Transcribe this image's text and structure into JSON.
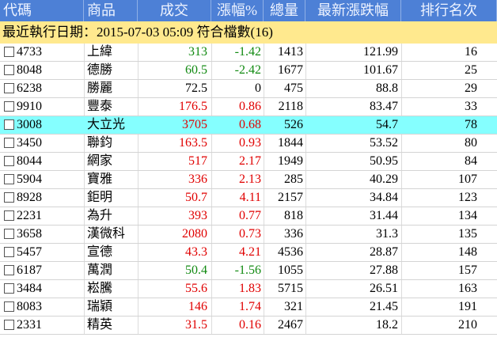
{
  "header": {
    "columns": [
      "代碼",
      "商品",
      "成交",
      "漲幅%",
      "總量",
      "最新漲跌幅",
      "排行名次"
    ]
  },
  "info": "最近執行日期：2015-07-03 05:09 符合檔數(16)",
  "selected_row": 4,
  "table": {
    "rows": [
      [
        "4733",
        "上緯",
        313,
        -1.42,
        1413,
        121.99,
        16
      ],
      [
        "8048",
        "德勝",
        60.5,
        -2.42,
        1677,
        101.67,
        25
      ],
      [
        "6238",
        "勝麗",
        72.5,
        0,
        475,
        88.8,
        29
      ],
      [
        "9910",
        "豐泰",
        176.5,
        0.86,
        2118,
        83.47,
        33
      ],
      [
        "3008",
        "大立光",
        3705,
        0.68,
        526,
        54.7,
        78
      ],
      [
        "3450",
        "聯鈞",
        163.5,
        0.93,
        1844,
        53.52,
        80
      ],
      [
        "8044",
        "網家",
        517,
        2.17,
        1949,
        50.95,
        84
      ],
      [
        "5904",
        "寶雅",
        336,
        2.13,
        285,
        40.29,
        107
      ],
      [
        "8928",
        "鉅明",
        50.7,
        4.11,
        2157,
        34.84,
        123
      ],
      [
        "2231",
        "為升",
        393,
        0.77,
        818,
        31.44,
        134
      ],
      [
        "3658",
        "漢微科",
        2080,
        0.73,
        336,
        31.3,
        135
      ],
      [
        "5457",
        "宣德",
        43.3,
        4.21,
        4536,
        28.87,
        148
      ],
      [
        "6187",
        "萬潤",
        50.4,
        -1.56,
        1055,
        27.88,
        157
      ],
      [
        "3484",
        "崧騰",
        55.6,
        1.83,
        5715,
        26.51,
        163
      ],
      [
        "8083",
        "瑞穎",
        146,
        1.74,
        321,
        21.45,
        191
      ],
      [
        "2331",
        "精英",
        31.5,
        0.16,
        2467,
        18.2,
        210
      ]
    ]
  }
}
